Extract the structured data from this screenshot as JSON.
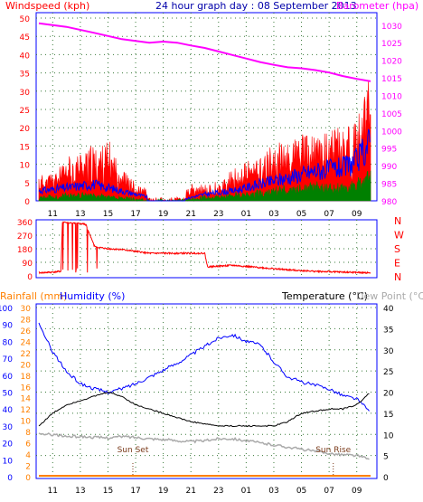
{
  "header": {
    "windspeed_label": "Windspeed (kph)",
    "title": "24 hour graph day : 08 September 2013",
    "barometer_label": "Barometer (hpa)"
  },
  "colors": {
    "frame": "#0000ff",
    "grid": "#3a7a3a",
    "wind": "#ff0000",
    "avg_wind": "#0000ff",
    "low_wind": "#008000",
    "barometer": "#ff00ff",
    "direction": "#ff0000",
    "humidity": "#0000ff",
    "temperature": "#000000",
    "dewpoint": "#aaaaaa",
    "rainfall": "#ff8000",
    "axis_wind": "#ff0000",
    "axis_baro": "#ff00ff",
    "axis_rain": "#ff8000",
    "axis_hum": "#0000ff",
    "axis_temp": "#000000"
  },
  "chart_data": [
    {
      "type": "line",
      "name": "wind-barometer",
      "x_ticks": [
        "11",
        "13",
        "15",
        "17",
        "19",
        "21",
        "23",
        "01",
        "03",
        "05",
        "07",
        "09"
      ],
      "y_left_ticks": [
        "0",
        "5",
        "10",
        "15",
        "20",
        "25",
        "30",
        "35",
        "40",
        "45",
        "50"
      ],
      "y_left_range": [
        0,
        50
      ],
      "y_right_ticks": [
        "980",
        "985",
        "990",
        "995",
        "1000",
        "1005",
        "1010",
        "1015",
        "1020",
        "1025",
        "1030"
      ],
      "y_right_range": [
        980,
        1032
      ],
      "barometer": {
        "x": [
          0,
          2,
          4,
          6,
          7,
          8,
          9,
          10,
          11,
          12,
          13,
          14,
          15,
          16,
          17,
          18,
          19,
          20,
          21,
          22,
          23,
          24
        ],
        "y": [
          1030.5,
          1029.5,
          1027.8,
          1026,
          1025.5,
          1025,
          1025.3,
          1025,
          1024.2,
          1023.5,
          1022.5,
          1021.5,
          1020.5,
          1019.5,
          1018.7,
          1018,
          1017.7,
          1017.2,
          1016.5,
          1015.5,
          1014.7,
          1014
        ]
      },
      "gust_envelope": {
        "x": [
          0,
          1,
          2,
          3,
          4,
          5,
          6,
          7,
          8,
          9,
          10,
          11,
          12,
          13,
          14,
          15,
          16,
          17,
          18,
          19,
          20,
          21,
          22,
          23,
          24
        ],
        "y": [
          7,
          8,
          11,
          14,
          15,
          16,
          10,
          4,
          3,
          0,
          1,
          4,
          4,
          5,
          8,
          10,
          13,
          15,
          17,
          19,
          18,
          20,
          21,
          22,
          35
        ]
      },
      "avg_envelope": {
        "x": [
          0,
          2,
          4,
          6,
          8,
          10,
          12,
          14,
          16,
          18,
          20,
          22,
          23,
          24
        ],
        "y": [
          3,
          4,
          5,
          3,
          1,
          0,
          2,
          3,
          5,
          7,
          9,
          10,
          12,
          18
        ]
      },
      "low_envelope": {
        "x": [
          0,
          2,
          4,
          6,
          8,
          10,
          12,
          14,
          16,
          18,
          20,
          22,
          23,
          24
        ],
        "y": [
          1,
          2,
          2,
          1,
          0,
          0,
          1,
          2,
          3,
          4,
          5,
          5,
          6,
          9
        ]
      }
    },
    {
      "type": "line",
      "name": "wind-direction",
      "y_left_ticks": [
        "0",
        "90",
        "180",
        "270",
        "360"
      ],
      "y_right_ticks": [
        "N",
        "W",
        "S",
        "E",
        "N"
      ],
      "y_range": [
        0,
        360
      ],
      "direction": {
        "x": [
          0,
          1.0,
          1.6,
          1.7,
          2.5,
          3.2,
          3.4,
          4.0,
          4.2,
          5.0,
          6.0,
          8.0,
          10.0,
          11.0,
          12.0,
          12.2,
          14,
          16,
          18,
          20,
          22,
          24
        ],
        "y": [
          20,
          25,
          30,
          355,
          350,
          345,
          340,
          200,
          190,
          180,
          175,
          150,
          150,
          150,
          150,
          60,
          70,
          55,
          40,
          30,
          25,
          20
        ]
      }
    },
    {
      "type": "line",
      "name": "humidity-temperature",
      "header": {
        "rainfall_label": "Rainfall (mm)",
        "humidity_label": "Humidity (%)",
        "temperature_label": "Temperature (°C)",
        "dewpoint_label": "Dew Point (°C)"
      },
      "y_hum_ticks": [
        "0",
        "10",
        "20",
        "30",
        "40",
        "50",
        "60",
        "70",
        "80",
        "90",
        "100"
      ],
      "y_rain_ticks": [
        "0",
        "2",
        "4",
        "6",
        "8",
        "10",
        "12",
        "14",
        "16",
        "18",
        "20",
        "22",
        "24",
        "26",
        "28",
        "30"
      ],
      "y_temp_ticks": [
        "0",
        "5",
        "10",
        "15",
        "20",
        "25",
        "30",
        "35",
        "40"
      ],
      "temp_range": [
        0,
        40
      ],
      "humidity": {
        "x": [
          0,
          1,
          2,
          3,
          4,
          5,
          6,
          7,
          8,
          9,
          10,
          11,
          12,
          13,
          14,
          15,
          16,
          17,
          18,
          19,
          20,
          21,
          22,
          23,
          24
        ],
        "y": [
          90,
          74,
          62,
          55,
          52,
          50,
          52,
          55,
          59,
          63,
          67,
          72,
          77,
          82,
          84,
          80,
          78,
          68,
          59,
          56,
          54,
          52,
          48,
          46,
          38
        ]
      },
      "temperature": {
        "x": [
          0,
          1,
          2,
          3,
          4,
          5,
          6,
          7,
          8,
          9,
          10,
          11,
          12,
          13,
          14,
          15,
          16,
          17,
          18,
          19,
          20,
          21,
          22,
          23,
          24
        ],
        "y": [
          12,
          15,
          17,
          18,
          19,
          20,
          19,
          17,
          16,
          15,
          14,
          13,
          12.5,
          12,
          12,
          12,
          12,
          12,
          13,
          15,
          15.5,
          16,
          16,
          17,
          20
        ]
      },
      "dewpoint": {
        "x": [
          0,
          1,
          2,
          3,
          4,
          5,
          6,
          7,
          8,
          9,
          10,
          11,
          12,
          13,
          14,
          15,
          16,
          17,
          18,
          19,
          20,
          21,
          22,
          23,
          24
        ],
        "y": [
          10,
          10,
          9.5,
          9.5,
          9.3,
          9.2,
          9.5,
          9.3,
          9,
          8.8,
          8.5,
          8.3,
          8.5,
          9,
          9,
          8.5,
          8,
          7.5,
          7,
          6.5,
          6,
          5.5,
          5.2,
          5,
          4
        ]
      },
      "rainfall": {
        "x": [
          0,
          24
        ],
        "y": [
          0,
          0
        ]
      },
      "annotations": {
        "sun_set": "Sun Set",
        "sun_rise": "Sun Rise"
      },
      "sun_set_x": 6.8,
      "sun_rise_x": 21.3
    }
  ]
}
